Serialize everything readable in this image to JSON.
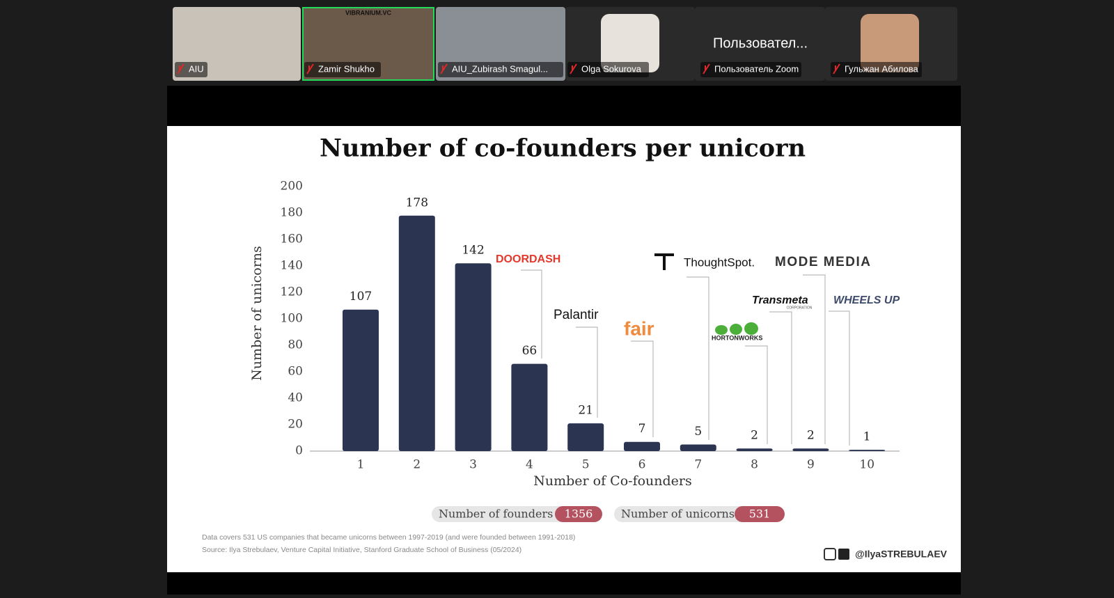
{
  "participants": [
    {
      "name": "AIU"
    },
    {
      "name": "Zamir Shukho",
      "overlay": "VIBRANIUM.VC"
    },
    {
      "name": "AIU_Zubirash Smagul..."
    },
    {
      "name": "Olga Sokurova"
    },
    {
      "name": "Пользователь Zoom",
      "tile_text": "Пользовател..."
    },
    {
      "name": "Гульжан Абилова"
    }
  ],
  "chart_data": {
    "type": "bar",
    "title": "Number of co-founders per unicorn",
    "x_label": "Number of Co-founders",
    "y_label": "Number of unicorns",
    "categories": [
      "1",
      "2",
      "3",
      "4",
      "5",
      "6",
      "7",
      "8",
      "9",
      "10"
    ],
    "values": [
      107,
      178,
      142,
      66,
      21,
      7,
      5,
      2,
      2,
      1
    ],
    "color": "#2b3552",
    "ylim": [
      0,
      200
    ],
    "yticks": [
      0,
      20,
      40,
      60,
      80,
      100,
      120,
      140,
      160,
      180,
      200
    ]
  },
  "summary": [
    {
      "label": "Number of founders",
      "value": 1356
    },
    {
      "label": "Number of unicorns",
      "value": 531
    }
  ],
  "logos": [
    "DOORDASH",
    "Palantir",
    "fair",
    "ThoughtSpot.",
    "MODE MEDIA",
    "Transmeta",
    "CORPORATION",
    "HORTONWORKS",
    "WHEELS UP"
  ],
  "footnotes": [
    "Data covers 531 US companies that became unicorns between 1997-2019 (and were founded between 1991-2018)",
    "Source: Ilya Strebulaev, Venture Capital Initiative, Stanford Graduate School of Business (05/2024)"
  ],
  "handle": "@IlyaSTREBULAEV"
}
